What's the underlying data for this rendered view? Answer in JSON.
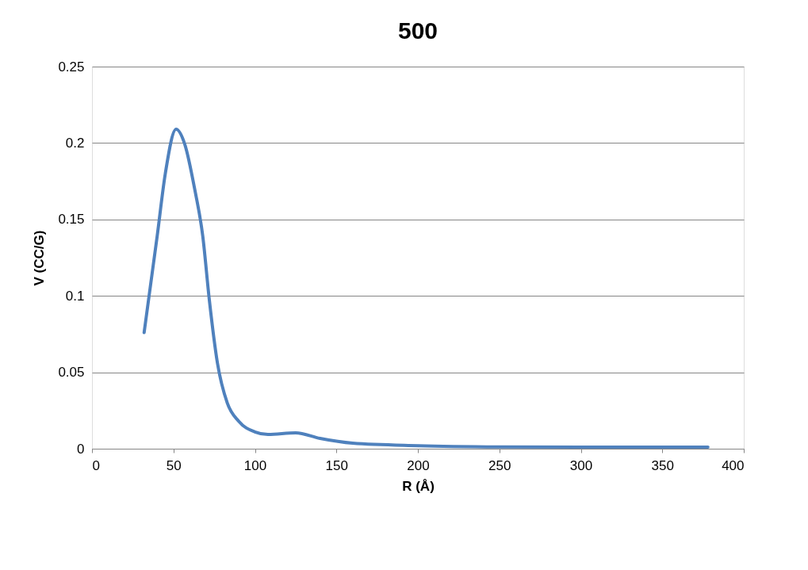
{
  "chart_data": {
    "type": "line",
    "title": "500",
    "xlabel": "R (Å)",
    "ylabel": "V (CC/G)",
    "x": [
      32,
      40,
      45,
      51.6,
      57,
      63,
      68,
      72,
      77,
      83,
      90,
      100,
      108,
      125,
      140,
      160,
      200,
      250,
      300,
      378
    ],
    "series": [
      {
        "color": "#4f81bd",
        "values": [
          0.076,
          0.139,
          0.18,
          0.209,
          0.199,
          0.17,
          0.139,
          0.0975,
          0.056,
          0.03,
          0.018,
          0.011,
          0.0093,
          0.0104,
          0.0067,
          0.0036,
          0.002,
          0.0012,
          0.001,
          0.001
        ]
      }
    ],
    "xlim": [
      0,
      400
    ],
    "xticks": [
      0,
      50,
      100,
      150,
      200,
      250,
      300,
      350,
      400
    ],
    "ylim": [
      0,
      0.25
    ],
    "yticks": [
      0,
      0.05,
      0.1,
      0.15,
      0.2,
      0.25
    ],
    "grid": "y",
    "marker": "none",
    "line_style": "solid"
  }
}
